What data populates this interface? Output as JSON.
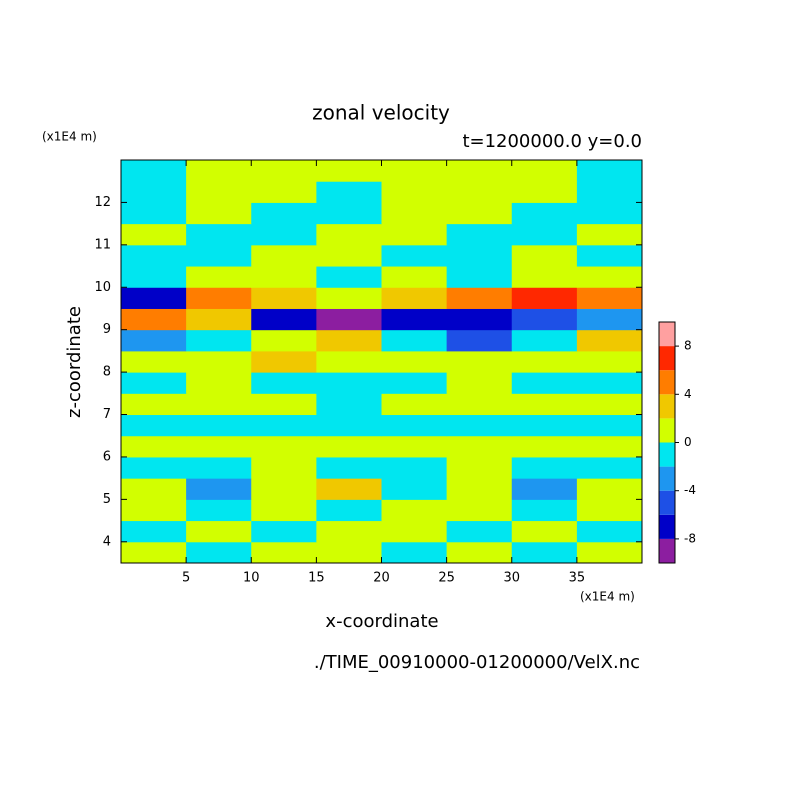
{
  "chart_data": {
    "type": "contour",
    "title": "zonal velocity",
    "subtitle": "t=1200000.0 y=0.0",
    "x_label": "x-coordinate",
    "y_label": "z-coordinate",
    "x_unit": "(x1E4 m)",
    "y_unit": "(x1E4 m)",
    "footer": "./TIME_00910000-01200000/VelX.nc",
    "xlim": [
      0,
      40
    ],
    "ylim": [
      3.5,
      13
    ],
    "xticks": [
      5,
      10,
      15,
      20,
      25,
      30,
      35
    ],
    "yticks": [
      4,
      5,
      6,
      7,
      8,
      9,
      10,
      11,
      12
    ],
    "x": [
      2.5,
      7.5,
      12.5,
      17.5,
      22.5,
      27.5,
      32.5,
      37.5
    ],
    "z": [
      3.75,
      4.25,
      4.75,
      5.25,
      5.75,
      6.25,
      6.75,
      7.25,
      7.75,
      8.25,
      8.75,
      9.25,
      9.75,
      10.25,
      10.75,
      11.25,
      11.75,
      12.25,
      12.75
    ],
    "values": [
      [
        1,
        -1,
        1,
        1,
        -1,
        1,
        -1,
        1
      ],
      [
        -1,
        1,
        -1,
        1,
        1,
        -1,
        1,
        -1
      ],
      [
        1,
        -1,
        1,
        -1,
        1,
        1,
        -1,
        1
      ],
      [
        1,
        -3,
        1,
        3,
        -1,
        1,
        -3,
        1
      ],
      [
        -1,
        -1,
        1,
        -1,
        -1,
        1,
        -1,
        -1
      ],
      [
        1,
        1,
        1,
        1,
        1,
        1,
        1,
        1
      ],
      [
        -1,
        -1,
        -1,
        -1,
        -1,
        -1,
        -1,
        -1
      ],
      [
        1,
        1,
        1,
        -1,
        1,
        1,
        1,
        1
      ],
      [
        -1,
        1,
        -1,
        -1,
        -1,
        1,
        -1,
        -1
      ],
      [
        1,
        1,
        3,
        1,
        1,
        1,
        1,
        1
      ],
      [
        -3,
        -1,
        1,
        3,
        -1,
        -5,
        -1,
        3
      ],
      [
        5,
        3,
        -7,
        -9,
        -7,
        -7,
        -5,
        -3
      ],
      [
        -7,
        5,
        3,
        1,
        3,
        5,
        7,
        5
      ],
      [
        -1,
        1,
        1,
        -1,
        1,
        -1,
        1,
        1
      ],
      [
        -1,
        -1,
        1,
        1,
        -1,
        -1,
        1,
        -1
      ],
      [
        1,
        -1,
        -1,
        1,
        1,
        -1,
        -1,
        1
      ],
      [
        -1,
        1,
        -1,
        -1,
        1,
        1,
        -1,
        -1
      ],
      [
        -1,
        1,
        1,
        -1,
        1,
        1,
        1,
        -1
      ],
      [
        -1,
        1,
        1,
        1,
        1,
        1,
        1,
        -1
      ]
    ],
    "colorbar": {
      "range": [
        -10,
        10
      ],
      "levels": [
        -8,
        -6,
        -4,
        -2,
        0,
        2,
        4,
        6,
        8
      ],
      "colors": [
        "#8c1ea0",
        "#0000c8",
        "#1e50e6",
        "#1e96f0",
        "#00e6f0",
        "#d2ff00",
        "#f0c800",
        "#ff7d00",
        "#ff2800",
        "#ffa0a0"
      ],
      "ticks": [
        -8,
        -4,
        0,
        4,
        8
      ]
    }
  }
}
